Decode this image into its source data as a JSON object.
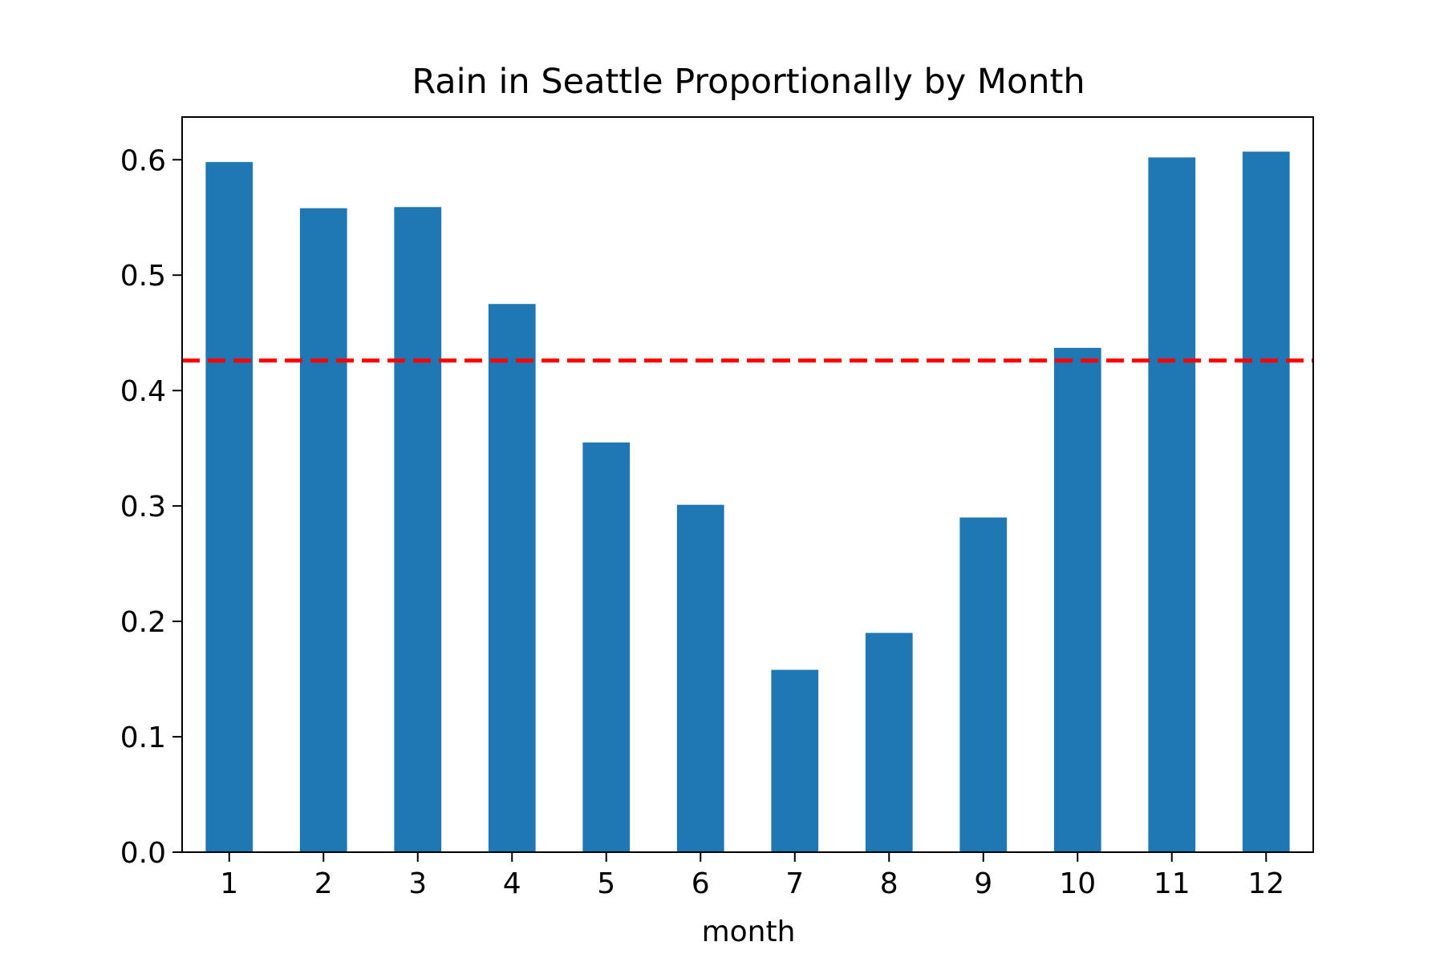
{
  "chart_data": {
    "type": "bar",
    "title": "Rain in Seattle Proportionally by Month",
    "xlabel": "month",
    "ylabel": "",
    "categories": [
      "1",
      "2",
      "3",
      "4",
      "5",
      "6",
      "7",
      "8",
      "9",
      "10",
      "11",
      "12"
    ],
    "values": [
      0.598,
      0.558,
      0.559,
      0.475,
      0.355,
      0.301,
      0.158,
      0.19,
      0.29,
      0.437,
      0.602,
      0.607
    ],
    "ylim": [
      0,
      0.637
    ],
    "yticks": [
      0.0,
      0.1,
      0.2,
      0.3,
      0.4,
      0.5,
      0.6
    ],
    "ytick_labels": [
      "0.0",
      "0.1",
      "0.2",
      "0.3",
      "0.4",
      "0.5",
      "0.6"
    ],
    "reference_line": {
      "value": 0.426,
      "style": "dashed"
    },
    "grid": false,
    "legend": "none",
    "colors": {
      "bar": "#1f77b4",
      "reference_line": "#ff0000",
      "axes": "#000000",
      "background": "#ffffff"
    }
  }
}
